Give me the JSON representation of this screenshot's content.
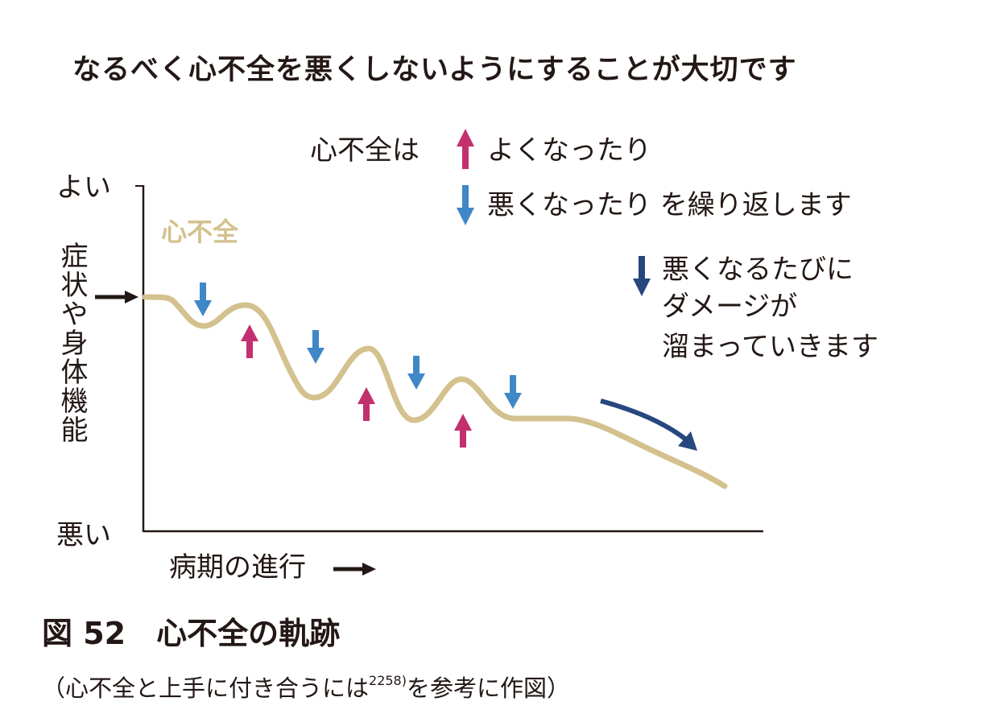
{
  "title": "なるべく心不全を悪くしないようにすることが大切です",
  "legend": {
    "prefix": "心不全は",
    "up_text": "よくなったり",
    "down_text": "悪くなったり を繰り返します",
    "damage_lines": [
      "悪くなるたびに",
      "ダメージが",
      "溜まっていきます"
    ]
  },
  "axes": {
    "y_top": "よい",
    "y_bottom": "悪い",
    "y_label": "症状や身体機能",
    "x_label": "病期の進行"
  },
  "curve_label": "心不全",
  "caption": "図 52　心不全の軌跡",
  "citation": {
    "before": "（心不全と上手に付き合うには",
    "ref": "2258)",
    "after": "を参考に作図）"
  },
  "colors": {
    "curve": "#d3c18e",
    "up_arrow": "#c3306f",
    "down_arrow": "#3f87c6",
    "damage_arrow": "#27477f",
    "text": "#231815"
  }
}
